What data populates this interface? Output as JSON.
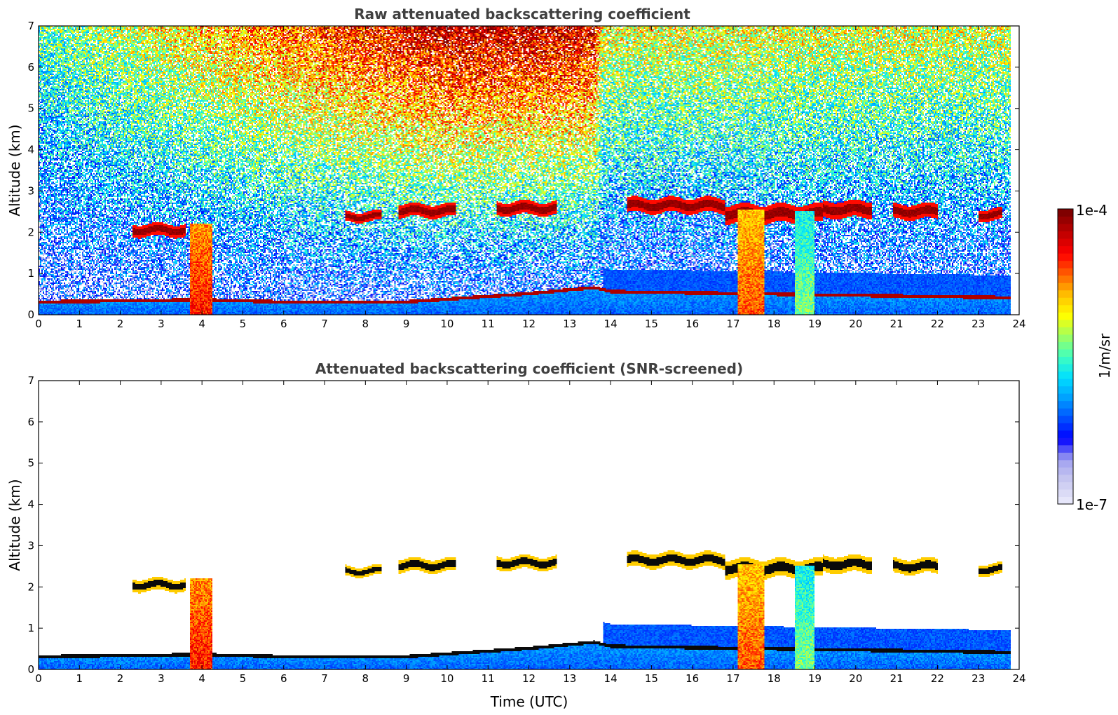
{
  "chart_data": [
    {
      "type": "heatmap",
      "title": "Raw attenuated backscattering coefficient",
      "xlabel": "",
      "ylabel": "Altitude (km)",
      "xlim": [
        0,
        24
      ],
      "ylim": [
        0,
        7
      ],
      "xticks": [
        "0",
        "1",
        "2",
        "3",
        "4",
        "5",
        "6",
        "7",
        "8",
        "9",
        "10",
        "11",
        "12",
        "13",
        "14",
        "15",
        "16",
        "17",
        "18",
        "19",
        "20",
        "21",
        "22",
        "23",
        "24"
      ],
      "yticks": [
        "0",
        "1",
        "2",
        "3",
        "4",
        "5",
        "6",
        "7"
      ],
      "screened": false,
      "noise_level_by_hour": [
        [
          0,
          0.3
        ],
        [
          5,
          0.55
        ],
        [
          10,
          0.75
        ],
        [
          13.6,
          0.72
        ],
        [
          13.8,
          0.45
        ],
        [
          24,
          0.42
        ]
      ],
      "cloud_layers": [
        {
          "t0": 7.5,
          "t1": 8.4,
          "alt": 2.38,
          "thick": 0.12
        },
        {
          "t0": 8.8,
          "t1": 10.2,
          "alt": 2.52,
          "thick": 0.16
        },
        {
          "t0": 11.2,
          "t1": 12.7,
          "alt": 2.58,
          "thick": 0.16
        },
        {
          "t0": 14.4,
          "t1": 16.8,
          "alt": 2.65,
          "thick": 0.18
        },
        {
          "t0": 16.8,
          "t1": 19.2,
          "alt": 2.45,
          "thick": 0.22
        },
        {
          "t0": 19.2,
          "t1": 20.4,
          "alt": 2.55,
          "thick": 0.2
        },
        {
          "t0": 20.9,
          "t1": 22.0,
          "alt": 2.5,
          "thick": 0.18
        },
        {
          "t0": 23.0,
          "t1": 23.6,
          "alt": 2.42,
          "thick": 0.14
        },
        {
          "t0": 2.3,
          "t1": 3.6,
          "alt": 2.05,
          "thick": 0.15
        }
      ],
      "precip_columns": [
        {
          "t0": 3.7,
          "t1": 4.25,
          "top": 2.2,
          "level": 0.85
        },
        {
          "t0": 17.1,
          "t1": 17.75,
          "top": 2.55,
          "level": 0.8
        },
        {
          "t0": 18.5,
          "t1": 19.0,
          "top": 2.5,
          "level": 0.55
        }
      ],
      "boundary_layer_km": [
        [
          0,
          0.35
        ],
        [
          4,
          0.4
        ],
        [
          6,
          0.35
        ],
        [
          9,
          0.35
        ],
        [
          12,
          0.55
        ],
        [
          13.6,
          0.7
        ],
        [
          14,
          0.6
        ],
        [
          24,
          0.45
        ]
      ]
    },
    {
      "type": "heatmap",
      "title": "Attenuated backscattering coefficient (SNR-screened)",
      "xlabel": "Time (UTC)",
      "ylabel": "Altitude (km)",
      "xlim": [
        0,
        24
      ],
      "ylim": [
        0,
        7
      ],
      "xticks": [
        "0",
        "1",
        "2",
        "3",
        "4",
        "5",
        "6",
        "7",
        "8",
        "9",
        "10",
        "11",
        "12",
        "13",
        "14",
        "15",
        "16",
        "17",
        "18",
        "19",
        "20",
        "21",
        "22",
        "23",
        "24"
      ],
      "yticks": [
        "0",
        "1",
        "2",
        "3",
        "4",
        "5",
        "6",
        "7"
      ],
      "screened": true
    }
  ],
  "colorbar": {
    "max_label": "1e-4",
    "min_label": "1e-7",
    "unit_label": "1/m/sr",
    "colors": [
      "#e6e6fa",
      "#c8c8f0",
      "#a0a0f0",
      "#0000ff",
      "#0050ff",
      "#00a0ff",
      "#00e0ff",
      "#40ffbf",
      "#9fff60",
      "#ffff00",
      "#ffc000",
      "#ff6000",
      "#ff0000",
      "#c00000",
      "#800000"
    ]
  }
}
